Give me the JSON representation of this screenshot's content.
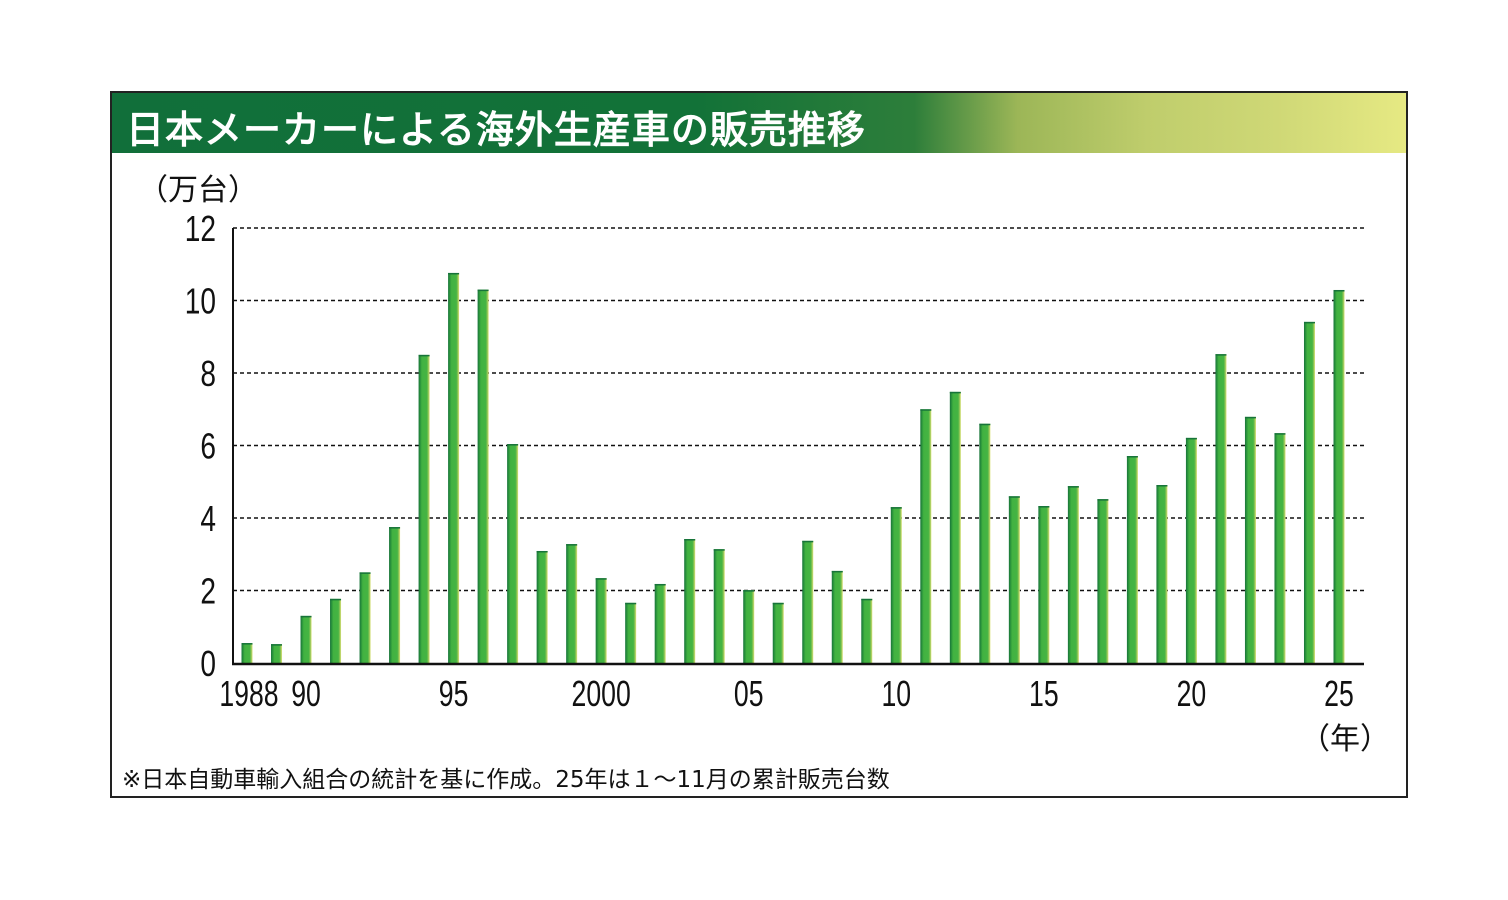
{
  "colors": {
    "title_bar_start": "#116f3a",
    "title_bar_end": "#e6e983",
    "bar_fill": "#42b241",
    "bar_edge_dark": "#17733a",
    "bar_edge_light": "#d8df6e"
  },
  "chart_data": {
    "type": "bar",
    "title": "日本メーカーによる海外生産車の販売推移",
    "ylabel": "（万台）",
    "xlabel": "（年）",
    "ylim": [
      0,
      12
    ],
    "yticks": [
      0,
      2,
      4,
      6,
      8,
      10,
      12
    ],
    "grid": true,
    "grid_style": "dashed",
    "x_tick_labels": [
      {
        "year": 1988,
        "label": "1988"
      },
      {
        "year": 1990,
        "label": "90"
      },
      {
        "year": 1995,
        "label": "95"
      },
      {
        "year": 2000,
        "label": "2000"
      },
      {
        "year": 2005,
        "label": "05"
      },
      {
        "year": 2010,
        "label": "10"
      },
      {
        "year": 2015,
        "label": "15"
      },
      {
        "year": 2020,
        "label": "20"
      },
      {
        "year": 2025,
        "label": "25"
      }
    ],
    "categories": [
      1988,
      1989,
      1990,
      1991,
      1992,
      1993,
      1994,
      1995,
      1996,
      1997,
      1998,
      1999,
      2000,
      2001,
      2002,
      2003,
      2004,
      2005,
      2006,
      2007,
      2008,
      2009,
      2010,
      2011,
      2012,
      2013,
      2014,
      2015,
      2016,
      2017,
      2018,
      2019,
      2020,
      2021,
      2022,
      2023,
      2024,
      2025
    ],
    "values": [
      0.55,
      0.52,
      1.3,
      1.77,
      2.5,
      3.75,
      8.5,
      10.76,
      10.3,
      6.04,
      3.09,
      3.28,
      2.34,
      1.66,
      2.18,
      3.42,
      3.14,
      2.01,
      1.66,
      3.37,
      2.54,
      1.77,
      4.3,
      7.0,
      7.48,
      6.6,
      4.6,
      4.33,
      4.88,
      4.52,
      5.71,
      4.91,
      6.21,
      8.52,
      6.79,
      6.34,
      9.41,
      10.29
    ],
    "footnote": "※日本自動車輸入組合の統計を基に作成。25年は１～11月の累計販売台数"
  }
}
